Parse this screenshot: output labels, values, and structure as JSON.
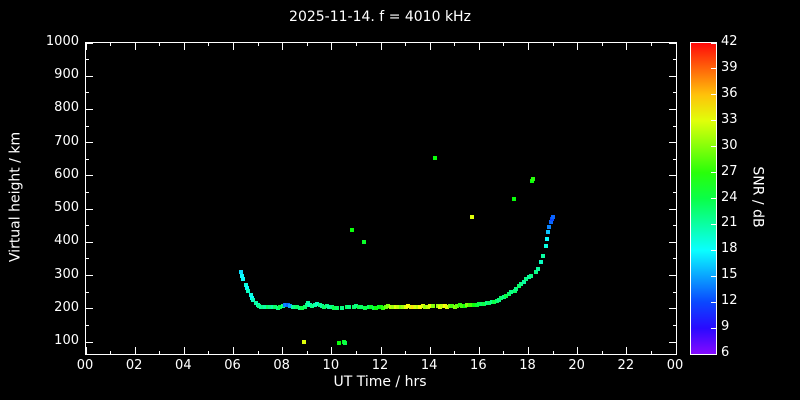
{
  "colors": {
    "background": "#000000",
    "foreground": "#ffffff",
    "axis": "#ffffff"
  },
  "chart_data": {
    "type": "scatter",
    "title": "2025-11-14. f = 4010 kHz",
    "xlabel": "UT Time / hrs",
    "ylabel": "Virtual height / km",
    "colorbar_label": "SNR / dB",
    "xlim": [
      0,
      24
    ],
    "ylim": [
      64,
      1000
    ],
    "snr_range": [
      6,
      42
    ],
    "grid": false,
    "legend": "colorbar-right",
    "x_tick_values": [
      0,
      2,
      4,
      6,
      8,
      10,
      12,
      14,
      16,
      18,
      20,
      22,
      24
    ],
    "x_tick_labels": [
      "00",
      "02",
      "04",
      "06",
      "08",
      "10",
      "12",
      "14",
      "16",
      "18",
      "20",
      "22",
      "00"
    ],
    "y_tick_values": [
      100,
      200,
      300,
      400,
      500,
      600,
      700,
      800,
      900,
      1000
    ],
    "y_tick_labels": [
      "100",
      "200",
      "300",
      "400",
      "500",
      "600",
      "700",
      "800",
      "900",
      "1000"
    ],
    "colorbar_ticks": [
      6,
      9,
      12,
      15,
      18,
      21,
      24,
      27,
      30,
      33,
      36,
      39,
      42
    ],
    "points_format": [
      "ut_hours",
      "virtual_height_km",
      "snr_db"
    ],
    "points": [
      [
        6.3,
        310,
        17
      ],
      [
        6.35,
        300,
        18
      ],
      [
        6.4,
        289,
        18
      ],
      [
        6.5,
        273,
        19
      ],
      [
        6.55,
        263,
        18
      ],
      [
        6.6,
        253,
        20
      ],
      [
        6.7,
        241,
        19
      ],
      [
        6.75,
        233,
        18
      ],
      [
        6.8,
        226,
        20
      ],
      [
        6.9,
        218,
        21
      ],
      [
        7.0,
        212,
        20
      ],
      [
        7.05,
        209,
        22
      ],
      [
        7.1,
        206,
        21
      ],
      [
        7.2,
        205,
        22
      ],
      [
        7.3,
        206,
        21
      ],
      [
        7.4,
        204,
        23
      ],
      [
        7.5,
        204,
        22
      ],
      [
        7.6,
        206,
        21
      ],
      [
        7.7,
        205,
        23
      ],
      [
        7.8,
        203,
        22
      ],
      [
        7.9,
        205,
        24
      ],
      [
        8.0,
        207,
        22
      ],
      [
        8.1,
        210,
        13
      ],
      [
        8.15,
        212,
        14
      ],
      [
        8.2,
        210,
        13
      ],
      [
        8.3,
        208,
        15
      ],
      [
        8.4,
        206,
        21
      ],
      [
        8.5,
        205,
        22
      ],
      [
        8.6,
        204,
        23
      ],
      [
        8.7,
        203,
        22
      ],
      [
        8.8,
        202,
        24
      ],
      [
        8.85,
        100,
        33
      ],
      [
        8.9,
        204,
        23
      ],
      [
        9.0,
        210,
        22
      ],
      [
        9.05,
        216,
        21
      ],
      [
        9.1,
        212,
        20
      ],
      [
        9.2,
        208,
        22
      ],
      [
        9.3,
        210,
        21
      ],
      [
        9.4,
        214,
        20
      ],
      [
        9.5,
        212,
        22
      ],
      [
        9.6,
        208,
        21
      ],
      [
        9.7,
        205,
        23
      ],
      [
        9.8,
        207,
        22
      ],
      [
        9.9,
        205,
        21
      ],
      [
        10.0,
        204,
        22
      ],
      [
        10.1,
        203,
        24
      ],
      [
        10.2,
        202,
        23
      ],
      [
        10.3,
        96,
        26
      ],
      [
        10.4,
        203,
        22
      ],
      [
        10.5,
        100,
        25
      ],
      [
        10.55,
        98,
        24
      ],
      [
        10.6,
        205,
        23
      ],
      [
        10.7,
        204,
        22
      ],
      [
        10.8,
        438,
        26
      ],
      [
        10.9,
        205,
        23
      ],
      [
        11.0,
        207,
        22
      ],
      [
        11.1,
        205,
        24
      ],
      [
        11.2,
        204,
        23
      ],
      [
        11.3,
        400,
        25
      ],
      [
        11.35,
        203,
        24
      ],
      [
        11.5,
        205,
        23
      ],
      [
        11.6,
        204,
        25
      ],
      [
        11.7,
        202,
        24
      ],
      [
        11.8,
        203,
        26
      ],
      [
        11.9,
        205,
        25
      ],
      [
        12.0,
        204,
        26
      ],
      [
        12.1,
        203,
        27
      ],
      [
        12.2,
        205,
        29
      ],
      [
        12.3,
        207,
        30
      ],
      [
        12.4,
        206,
        32
      ],
      [
        12.5,
        205,
        31
      ],
      [
        12.6,
        204,
        33
      ],
      [
        12.7,
        206,
        32
      ],
      [
        12.8,
        205,
        30
      ],
      [
        12.9,
        204,
        31
      ],
      [
        13.0,
        205,
        33
      ],
      [
        13.1,
        207,
        34
      ],
      [
        13.2,
        206,
        33
      ],
      [
        13.3,
        205,
        35
      ],
      [
        13.4,
        204,
        33
      ],
      [
        13.5,
        206,
        32
      ],
      [
        13.6,
        205,
        34
      ],
      [
        13.7,
        207,
        33
      ],
      [
        13.8,
        206,
        31
      ],
      [
        13.9,
        205,
        32
      ],
      [
        14.0,
        207,
        33
      ],
      [
        14.1,
        208,
        30
      ],
      [
        14.2,
        655,
        26
      ],
      [
        14.3,
        207,
        31
      ],
      [
        14.4,
        206,
        33
      ],
      [
        14.5,
        208,
        32
      ],
      [
        14.6,
        207,
        34
      ],
      [
        14.7,
        206,
        33
      ],
      [
        14.8,
        208,
        30
      ],
      [
        14.9,
        207,
        28
      ],
      [
        15.0,
        206,
        30
      ],
      [
        15.1,
        208,
        29
      ],
      [
        15.2,
        210,
        27
      ],
      [
        15.3,
        209,
        28
      ],
      [
        15.4,
        208,
        26
      ],
      [
        15.5,
        210,
        30
      ],
      [
        15.6,
        212,
        28
      ],
      [
        15.7,
        475,
        33
      ],
      [
        15.8,
        210,
        26
      ],
      [
        15.9,
        212,
        25
      ],
      [
        16.0,
        214,
        24
      ],
      [
        16.1,
        213,
        23
      ],
      [
        16.2,
        215,
        24
      ],
      [
        16.3,
        216,
        22
      ],
      [
        16.4,
        218,
        23
      ],
      [
        16.5,
        220,
        22
      ],
      [
        16.6,
        222,
        24
      ],
      [
        16.7,
        225,
        23
      ],
      [
        16.8,
        228,
        22
      ],
      [
        16.9,
        232,
        23
      ],
      [
        17.0,
        236,
        22
      ],
      [
        17.1,
        240,
        24
      ],
      [
        17.2,
        245,
        23
      ],
      [
        17.3,
        250,
        22
      ],
      [
        17.4,
        530,
        26
      ],
      [
        17.45,
        255,
        23
      ],
      [
        17.5,
        260,
        22
      ],
      [
        17.6,
        268,
        23
      ],
      [
        17.7,
        275,
        22
      ],
      [
        17.8,
        282,
        21
      ],
      [
        17.9,
        290,
        22
      ],
      [
        18.0,
        295,
        21
      ],
      [
        18.1,
        300,
        22
      ],
      [
        18.15,
        585,
        26
      ],
      [
        18.2,
        590,
        27
      ],
      [
        18.3,
        310,
        22
      ],
      [
        18.4,
        320,
        21
      ],
      [
        18.5,
        340,
        20
      ],
      [
        18.6,
        360,
        21
      ],
      [
        18.7,
        390,
        19
      ],
      [
        18.75,
        410,
        18
      ],
      [
        18.8,
        430,
        16
      ],
      [
        18.85,
        445,
        14
      ],
      [
        18.9,
        460,
        13
      ],
      [
        18.95,
        470,
        12
      ],
      [
        19.0,
        475,
        13
      ]
    ]
  }
}
